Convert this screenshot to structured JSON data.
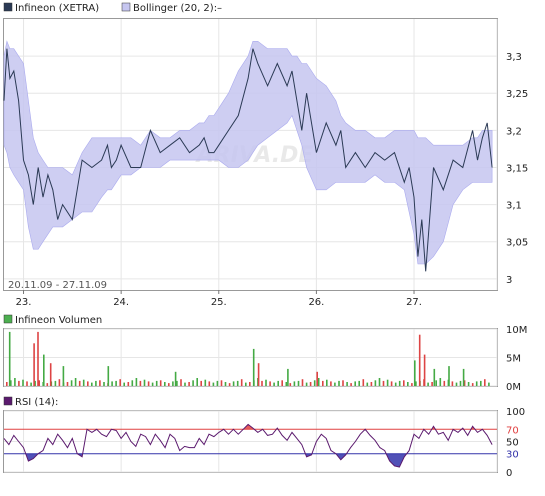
{
  "chart_data": [
    {
      "type": "line",
      "legend": [
        {
          "name": "Infineon (XETRA)",
          "color": "#2b3a55"
        },
        {
          "name": "Bollinger (20, 2):",
          "suffix": "–",
          "color": "#c6c6f0"
        }
      ],
      "date_range": "20.11.09 - 27.11.09",
      "watermark": "ARIVA.DE",
      "x_ticks": [
        "23.",
        "24.",
        "25.",
        "26.",
        "27."
      ],
      "y_ticks": [
        "3",
        "3,05",
        "3,1",
        "3,15",
        "3,2",
        "3,25",
        "3,3"
      ],
      "ylim": [
        2.985,
        3.35
      ],
      "day_boundaries": [
        0.2,
        1.2,
        2.2,
        3.2,
        4.2,
        5.05
      ],
      "series": [
        {
          "name": "Infineon (XETRA)",
          "color": "#2b3a55",
          "x": [
            0.0,
            0.03,
            0.06,
            0.1,
            0.15,
            0.2,
            0.25,
            0.3,
            0.35,
            0.4,
            0.45,
            0.5,
            0.55,
            0.6,
            0.7,
            0.8,
            0.9,
            1.0,
            1.06,
            1.1,
            1.15,
            1.2,
            1.3,
            1.4,
            1.5,
            1.6,
            1.7,
            1.8,
            1.9,
            2.0,
            2.05,
            2.1,
            2.15,
            2.2,
            2.3,
            2.4,
            2.5,
            2.55,
            2.6,
            2.7,
            2.8,
            2.9,
            2.95,
            3.0,
            3.05,
            3.1,
            3.2,
            3.3,
            3.4,
            3.45,
            3.5,
            3.6,
            3.7,
            3.8,
            3.9,
            4.0,
            4.1,
            4.15,
            4.2,
            4.24,
            4.28,
            4.32,
            4.4,
            4.5,
            4.6,
            4.7,
            4.8,
            4.85,
            4.9,
            4.95,
            5.0
          ],
          "y": [
            3.24,
            3.31,
            3.27,
            3.28,
            3.24,
            3.16,
            3.14,
            3.1,
            3.15,
            3.11,
            3.14,
            3.12,
            3.08,
            3.1,
            3.08,
            3.16,
            3.15,
            3.16,
            3.18,
            3.15,
            3.16,
            3.18,
            3.15,
            3.15,
            3.2,
            3.17,
            3.18,
            3.19,
            3.17,
            3.18,
            3.19,
            3.17,
            3.17,
            3.18,
            3.2,
            3.22,
            3.27,
            3.31,
            3.29,
            3.26,
            3.29,
            3.26,
            3.28,
            3.24,
            3.2,
            3.25,
            3.17,
            3.21,
            3.18,
            3.2,
            3.15,
            3.17,
            3.15,
            3.17,
            3.16,
            3.17,
            3.13,
            3.15,
            3.11,
            3.03,
            3.08,
            3.01,
            3.15,
            3.12,
            3.16,
            3.15,
            3.2,
            3.16,
            3.19,
            3.21,
            3.15
          ]
        },
        {
          "name": "Bollinger upper",
          "color": "#c6c6f0",
          "x": [
            0.0,
            0.03,
            0.06,
            0.1,
            0.15,
            0.2,
            0.25,
            0.3,
            0.35,
            0.4,
            0.45,
            0.5,
            0.55,
            0.6,
            0.7,
            0.8,
            0.9,
            1.0,
            1.06,
            1.1,
            1.15,
            1.2,
            1.3,
            1.4,
            1.5,
            1.6,
            1.7,
            1.8,
            1.9,
            2.0,
            2.05,
            2.1,
            2.15,
            2.2,
            2.3,
            2.4,
            2.5,
            2.55,
            2.6,
            2.7,
            2.8,
            2.9,
            2.95,
            3.0,
            3.05,
            3.1,
            3.2,
            3.3,
            3.4,
            3.45,
            3.5,
            3.6,
            3.7,
            3.8,
            3.9,
            4.0,
            4.1,
            4.15,
            4.2,
            4.24,
            4.28,
            4.32,
            4.4,
            4.5,
            4.6,
            4.7,
            4.8,
            4.85,
            4.9,
            4.95,
            5.0
          ],
          "y": [
            3.3,
            3.32,
            3.31,
            3.31,
            3.3,
            3.29,
            3.24,
            3.19,
            3.17,
            3.16,
            3.15,
            3.15,
            3.15,
            3.15,
            3.14,
            3.17,
            3.19,
            3.19,
            3.19,
            3.19,
            3.19,
            3.19,
            3.19,
            3.18,
            3.2,
            3.19,
            3.19,
            3.2,
            3.2,
            3.21,
            3.21,
            3.22,
            3.22,
            3.23,
            3.25,
            3.28,
            3.3,
            3.32,
            3.32,
            3.31,
            3.31,
            3.31,
            3.3,
            3.3,
            3.29,
            3.29,
            3.27,
            3.26,
            3.24,
            3.22,
            3.21,
            3.2,
            3.2,
            3.19,
            3.19,
            3.2,
            3.2,
            3.2,
            3.2,
            3.19,
            3.19,
            3.19,
            3.18,
            3.18,
            3.18,
            3.18,
            3.19,
            3.19,
            3.2,
            3.2,
            3.2
          ]
        },
        {
          "name": "Bollinger lower",
          "color": "#c6c6f0",
          "x": [
            0.0,
            0.03,
            0.06,
            0.1,
            0.15,
            0.2,
            0.25,
            0.3,
            0.35,
            0.4,
            0.45,
            0.5,
            0.55,
            0.6,
            0.7,
            0.8,
            0.9,
            1.0,
            1.06,
            1.1,
            1.15,
            1.2,
            1.3,
            1.4,
            1.5,
            1.6,
            1.7,
            1.8,
            1.9,
            2.0,
            2.05,
            2.1,
            2.15,
            2.2,
            2.3,
            2.4,
            2.5,
            2.55,
            2.6,
            2.7,
            2.8,
            2.9,
            2.95,
            3.0,
            3.05,
            3.1,
            3.2,
            3.3,
            3.4,
            3.45,
            3.5,
            3.6,
            3.7,
            3.8,
            3.9,
            4.0,
            4.1,
            4.15,
            4.2,
            4.24,
            4.28,
            4.32,
            4.4,
            4.5,
            4.6,
            4.7,
            4.8,
            4.85,
            4.9,
            4.95,
            5.0
          ],
          "y": [
            3.18,
            3.17,
            3.15,
            3.14,
            3.13,
            3.12,
            3.07,
            3.04,
            3.04,
            3.05,
            3.06,
            3.07,
            3.07,
            3.07,
            3.08,
            3.09,
            3.09,
            3.11,
            3.12,
            3.12,
            3.13,
            3.14,
            3.14,
            3.15,
            3.15,
            3.15,
            3.16,
            3.16,
            3.16,
            3.16,
            3.16,
            3.16,
            3.16,
            3.16,
            3.15,
            3.15,
            3.16,
            3.17,
            3.18,
            3.19,
            3.2,
            3.21,
            3.22,
            3.2,
            3.18,
            3.15,
            3.12,
            3.12,
            3.13,
            3.13,
            3.13,
            3.13,
            3.13,
            3.14,
            3.13,
            3.13,
            3.12,
            3.09,
            3.06,
            3.02,
            3.02,
            3.02,
            3.03,
            3.05,
            3.1,
            3.12,
            3.13,
            3.13,
            3.13,
            3.13,
            3.13
          ]
        }
      ]
    },
    {
      "type": "bar",
      "title": "Infineon Volumen",
      "legend_color": "#4caf50",
      "unit": "M",
      "y_ticks": [
        "0M",
        "5M",
        "10M"
      ],
      "ylim": [
        0,
        10
      ],
      "up_color": "#44aa44",
      "down_color": "#dd4444",
      "base_values": [
        0.7,
        1.0,
        1.4,
        0.9,
        1.1,
        0.8,
        0.6,
        0.9,
        1.0,
        0.7,
        0.5,
        0.8,
        0.9,
        1.2,
        0.6
      ],
      "spikes": [
        {
          "x": 0.05,
          "value": 9.5,
          "up": true
        },
        {
          "x": 0.3,
          "value": 7.5,
          "up": false
        },
        {
          "x": 0.34,
          "value": 9.5,
          "up": false
        },
        {
          "x": 0.4,
          "value": 5.5,
          "up": true
        },
        {
          "x": 0.47,
          "value": 4.0,
          "up": false
        },
        {
          "x": 0.6,
          "value": 3.5,
          "up": true
        },
        {
          "x": 1.06,
          "value": 3.5,
          "up": true
        },
        {
          "x": 1.75,
          "value": 2.5,
          "up": true
        },
        {
          "x": 2.55,
          "value": 6.5,
          "up": true
        },
        {
          "x": 2.6,
          "value": 4.0,
          "up": false
        },
        {
          "x": 2.9,
          "value": 3.0,
          "up": true
        },
        {
          "x": 3.2,
          "value": 2.5,
          "up": false
        },
        {
          "x": 4.2,
          "value": 4.5,
          "up": true
        },
        {
          "x": 4.25,
          "value": 9.0,
          "up": false
        },
        {
          "x": 4.3,
          "value": 5.5,
          "up": false
        },
        {
          "x": 4.4,
          "value": 3.0,
          "up": true
        },
        {
          "x": 4.55,
          "value": 3.5,
          "up": true
        },
        {
          "x": 4.7,
          "value": 3.0,
          "up": true
        }
      ]
    },
    {
      "type": "line",
      "title": "RSI (14):",
      "legend_color": "#5b1a6e",
      "line_color": "#5b1a6e",
      "y_ticks": [
        "0",
        "30",
        "50",
        "70",
        "100"
      ],
      "ylim": [
        0,
        100
      ],
      "upper_level": 70,
      "lower_level": 30,
      "upper_color": "#e04040",
      "lower_color": "#3333aa",
      "series": [
        {
          "name": "RSI (14)",
          "x": [
            0.0,
            0.05,
            0.1,
            0.15,
            0.2,
            0.25,
            0.3,
            0.35,
            0.4,
            0.45,
            0.5,
            0.55,
            0.6,
            0.65,
            0.7,
            0.75,
            0.8,
            0.85,
            0.9,
            0.95,
            1.0,
            1.05,
            1.1,
            1.15,
            1.2,
            1.25,
            1.3,
            1.35,
            1.4,
            1.45,
            1.5,
            1.55,
            1.6,
            1.65,
            1.7,
            1.75,
            1.8,
            1.85,
            1.9,
            1.95,
            2.0,
            2.05,
            2.1,
            2.15,
            2.2,
            2.25,
            2.3,
            2.35,
            2.4,
            2.45,
            2.5,
            2.55,
            2.6,
            2.65,
            2.7,
            2.75,
            2.8,
            2.85,
            2.9,
            2.95,
            3.0,
            3.05,
            3.1,
            3.15,
            3.2,
            3.25,
            3.3,
            3.35,
            3.4,
            3.45,
            3.5,
            3.55,
            3.6,
            3.65,
            3.7,
            3.75,
            3.8,
            3.85,
            3.9,
            3.95,
            4.0,
            4.05,
            4.1,
            4.15,
            4.2,
            4.25,
            4.3,
            4.35,
            4.4,
            4.45,
            4.5,
            4.55,
            4.6,
            4.65,
            4.7,
            4.75,
            4.8,
            4.85,
            4.9,
            4.95,
            5.0
          ],
          "y": [
            55,
            45,
            60,
            50,
            40,
            18,
            22,
            30,
            35,
            55,
            45,
            62,
            52,
            40,
            55,
            30,
            25,
            70,
            65,
            70,
            62,
            58,
            70,
            68,
            55,
            65,
            50,
            42,
            62,
            58,
            45,
            62,
            52,
            40,
            62,
            55,
            35,
            42,
            40,
            40,
            55,
            45,
            62,
            58,
            65,
            70,
            62,
            70,
            62,
            70,
            78,
            72,
            65,
            70,
            60,
            62,
            72,
            60,
            52,
            65,
            55,
            45,
            25,
            28,
            50,
            62,
            55,
            35,
            30,
            20,
            28,
            40,
            50,
            62,
            70,
            60,
            52,
            40,
            35,
            18,
            10,
            8,
            25,
            35,
            62,
            55,
            70,
            62,
            75,
            62,
            65,
            52,
            70,
            65,
            72,
            60,
            75,
            65,
            70,
            60,
            45
          ]
        }
      ]
    }
  ]
}
